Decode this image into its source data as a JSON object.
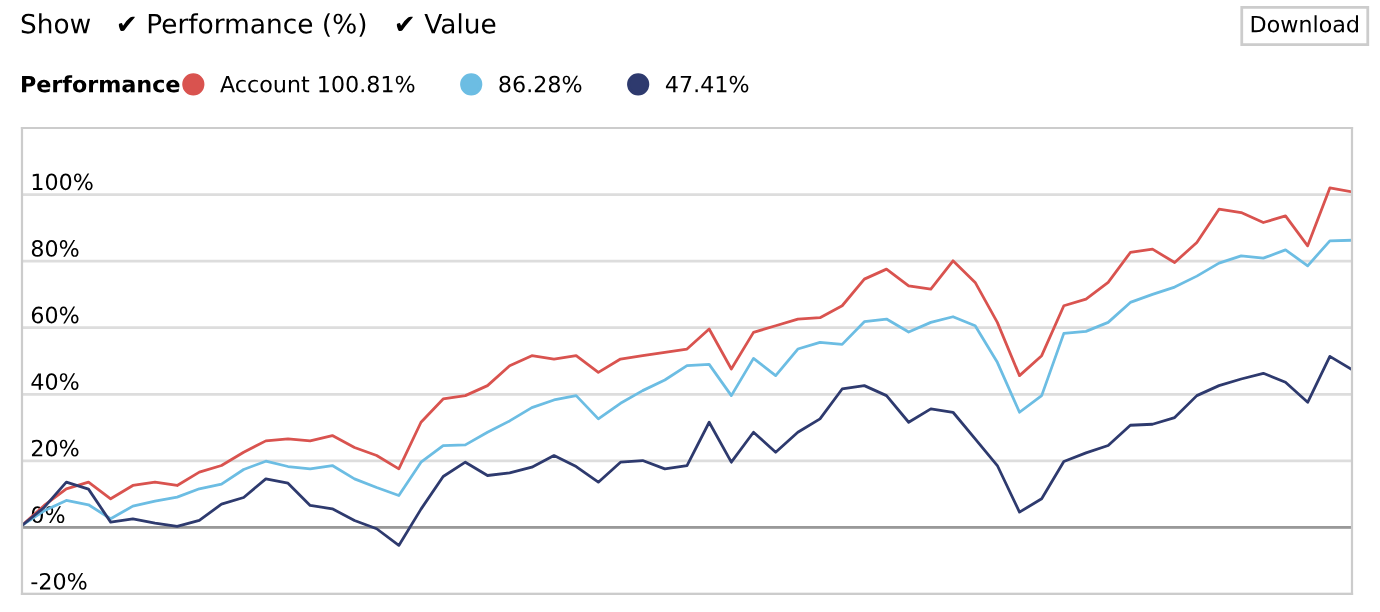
{
  "chart_data": {
    "type": "line",
    "legend_title": "Performance",
    "annotations": [
      "Show",
      "✔ Performance (%)",
      "✔ Value",
      "Download"
    ],
    "categories": [
      null,
      null,
      null,
      null,
      null,
      null,
      null,
      null,
      null,
      null,
      null,
      null,
      null,
      null,
      null,
      null,
      null,
      null,
      null,
      null,
      null,
      null,
      null,
      null,
      null,
      null,
      null,
      null,
      null,
      null,
      null,
      null,
      null,
      null,
      null,
      null,
      null,
      null,
      null,
      null,
      null,
      null,
      null,
      null,
      null,
      null,
      null,
      null,
      null,
      null,
      null,
      null,
      null,
      null,
      null,
      null,
      null,
      null,
      null,
      null,
      null
    ],
    "ylim": [
      -20,
      120
    ],
    "yticks": [
      {
        "value": -20,
        "label": "-20%"
      },
      {
        "value": 0,
        "label": "0%"
      },
      {
        "value": 20,
        "label": "20%"
      },
      {
        "value": 40,
        "label": "40%"
      },
      {
        "value": 60,
        "label": "60%"
      },
      {
        "value": 80,
        "label": "80%"
      },
      {
        "value": 100,
        "label": "100%"
      }
    ],
    "grid": "y",
    "legend": "top left",
    "tick_labels": "y",
    "marker": "none",
    "line_style": "solid",
    "series": [
      {
        "name": "Account 100.81%",
        "color": "#d9534f",
        "values": [
          0.6,
          6.6,
          11.6,
          13.6,
          8.6,
          12.6,
          13.6,
          12.6,
          16.6,
          18.6,
          22.6,
          26,
          26.6,
          26,
          27.6,
          24,
          21.6,
          17.6,
          31.6,
          38.6,
          39.6,
          42.6,
          48.6,
          51.6,
          50.6,
          51.6,
          46.6,
          50.6,
          51.6,
          52.6,
          53.6,
          59.6,
          47.6,
          58.6,
          60.6,
          62.6,
          63,
          66.6,
          74.6,
          77.6,
          72.6,
          71.6,
          80.1,
          73.6,
          61.6,
          45.6,
          51.6,
          66.6,
          68.6,
          73.6,
          82.6,
          83.6,
          79.6,
          85.6,
          95.6,
          94.6,
          91.6,
          93.6,
          84.6,
          102,
          100.81
        ]
      },
      {
        "name": "86.28%",
        "color": "#6cbde3",
        "values": [
          0.6,
          5,
          8.1,
          6.8,
          2.6,
          6.4,
          7.9,
          9.1,
          11.6,
          13,
          17.4,
          19.9,
          18.3,
          17.6,
          18.6,
          14.6,
          12,
          9.6,
          19.6,
          24.6,
          24.8,
          28.6,
          32,
          36,
          38.3,
          39.6,
          32.6,
          37.3,
          41.1,
          44.3,
          48.6,
          49,
          39.6,
          50.8,
          45.6,
          53.6,
          55.6,
          55,
          61.8,
          62.6,
          58.7,
          61.6,
          63.3,
          60.6,
          49.6,
          34.6,
          39.6,
          58.3,
          58.9,
          61.6,
          67.6,
          70,
          72.2,
          75.5,
          79.4,
          81.6,
          80.9,
          83.4,
          78.6,
          86.1,
          86.28
        ]
      },
      {
        "name": "47.41%",
        "color": "#2e3a6e",
        "values": [
          0.6,
          6,
          13.6,
          11.5,
          1.6,
          2.6,
          1.3,
          0.3,
          2.1,
          7,
          9,
          14.6,
          13.3,
          6.6,
          5.6,
          2.1,
          -0.4,
          -5.4,
          5.5,
          15.3,
          19.6,
          15.6,
          16.4,
          18.1,
          21.6,
          18.3,
          13.6,
          19.6,
          20.1,
          17.6,
          18.6,
          31.6,
          19.6,
          28.6,
          22.6,
          28.6,
          32.6,
          41.6,
          42.6,
          39.6,
          31.6,
          35.6,
          34.6,
          26.6,
          18.6,
          4.6,
          8.6,
          19.8,
          22.4,
          24.6,
          30.7,
          31,
          33,
          39.6,
          42.6,
          44.6,
          46.3,
          43.6,
          37.6,
          51.4,
          47.41
        ]
      }
    ]
  }
}
